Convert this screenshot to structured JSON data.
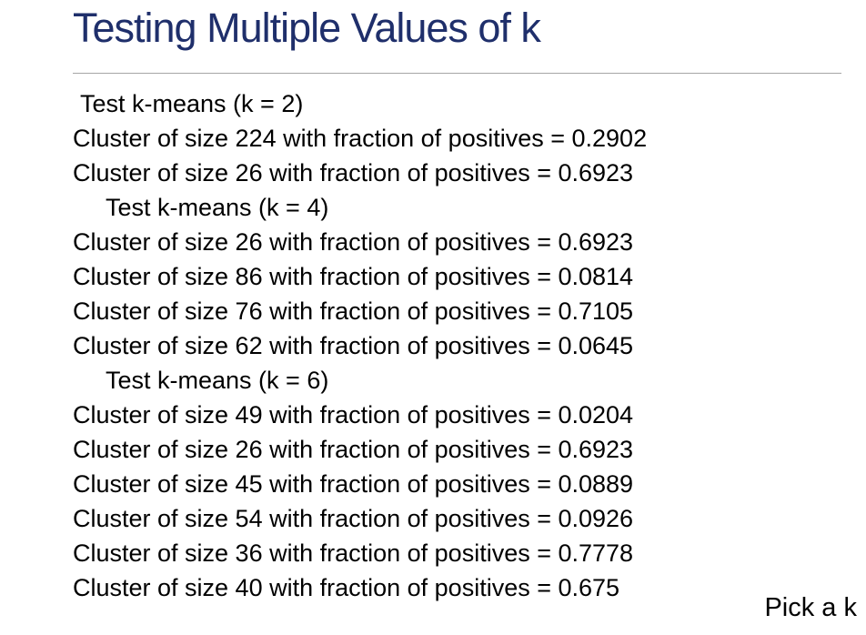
{
  "slide": {
    "title": "Testing Multiple Values of k",
    "footer_note": "Pick a k"
  },
  "results": {
    "k2": {
      "header": "Test k-means (k = 2)",
      "clusters": [
        "Cluster of size 224 with fraction of positives = 0.2902",
        "Cluster of size 26 with fraction of positives = 0.6923"
      ]
    },
    "k4": {
      "header": "Test k-means (k = 4)",
      "clusters": [
        "Cluster of size 26 with fraction of positives = 0.6923",
        "Cluster of size 86 with fraction of positives = 0.0814",
        "Cluster of size 76 with fraction of positives = 0.7105",
        "Cluster of size 62 with fraction of positives = 0.0645"
      ]
    },
    "k6": {
      "header": "Test k-means (k = 6)",
      "clusters": [
        "Cluster of size 49 with fraction of positives = 0.0204",
        "Cluster of size 26 with fraction of positives = 0.6923",
        "Cluster of size 45 with fraction of positives = 0.0889",
        "Cluster of size 54 with fraction of positives = 0.0926",
        "Cluster of size 36 with fraction of positives = 0.7778",
        "Cluster of size 40 with fraction of positives = 0.675"
      ]
    }
  },
  "colors": {
    "title": "#1f2f6b",
    "rule": "#a6a6a6",
    "text": "#000000"
  }
}
